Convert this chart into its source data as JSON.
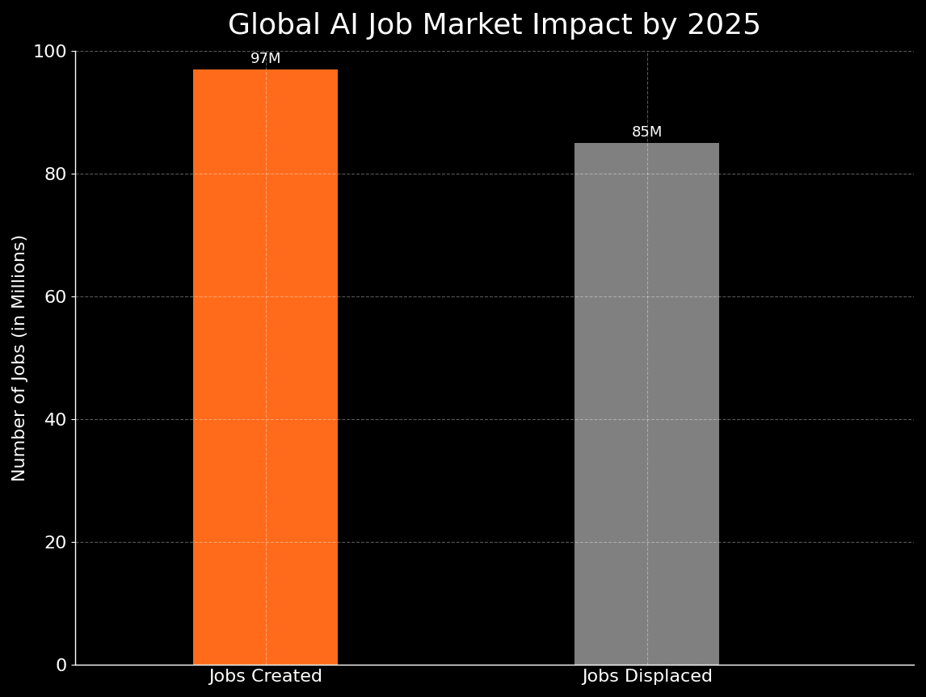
{
  "title": "Global AI Job Market Impact by 2025",
  "categories": [
    "Jobs Created",
    "Jobs Displaced"
  ],
  "values": [
    97,
    85
  ],
  "bar_colors": [
    "#FF6B1A",
    "#808080"
  ],
  "bar_labels": [
    "97M",
    "85M"
  ],
  "ylabel": "Number of Jobs (in Millions)",
  "ylim": [
    0,
    100
  ],
  "yticks": [
    0,
    20,
    40,
    60,
    80,
    100
  ],
  "background_color": "#000000",
  "text_color": "#FFFFFF",
  "grid_color": "#FFFFFF",
  "title_fontsize": 26,
  "label_fontsize": 16,
  "tick_fontsize": 16,
  "bar_label_fontsize": 13,
  "bar_width": 0.38,
  "x_positions": [
    1,
    2
  ],
  "xlim": [
    0.5,
    2.7
  ]
}
